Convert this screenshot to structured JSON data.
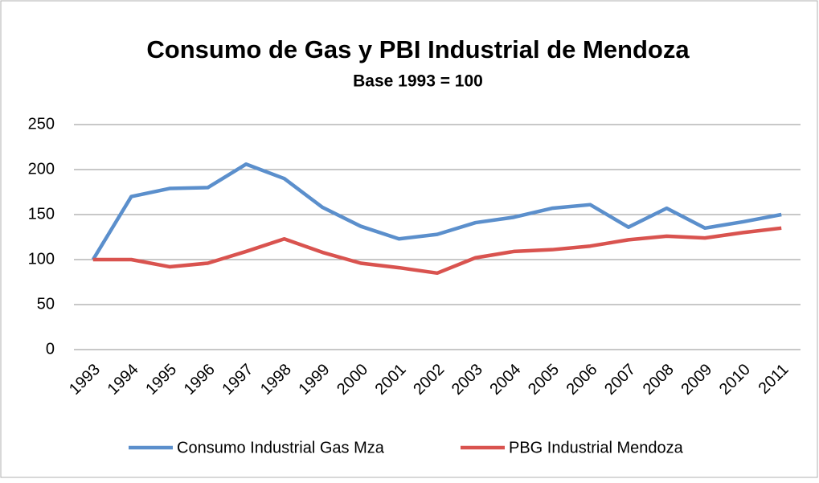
{
  "chart_data": {
    "type": "line",
    "title": "Consumo de Gas y PBI Industrial de Mendoza",
    "subtitle": "Base 1993 = 100",
    "categories": [
      "1993",
      "1994",
      "1995",
      "1996",
      "1997",
      "1998",
      "1999",
      "2000",
      "2001",
      "2002",
      "2003",
      "2004",
      "2005",
      "2006",
      "2007",
      "2008",
      "2009",
      "2010",
      "2011"
    ],
    "series": [
      {
        "name": "Consumo Industrial Gas Mza",
        "color": "#5b8fcc",
        "values": [
          100,
          170,
          179,
          180,
          206,
          190,
          158,
          137,
          123,
          128,
          141,
          147,
          157,
          161,
          136,
          157,
          135,
          142,
          150
        ]
      },
      {
        "name": "PBG Industrial Mendoza",
        "color": "#d9534f",
        "values": [
          100,
          100,
          92,
          96,
          109,
          123,
          108,
          96,
          91,
          85,
          102,
          109,
          111,
          115,
          122,
          126,
          124,
          130,
          135
        ]
      }
    ],
    "ylim": [
      0,
      250
    ],
    "yticks": [
      0,
      50,
      100,
      150,
      200,
      250
    ],
    "grid": true,
    "legend": "bottom"
  }
}
